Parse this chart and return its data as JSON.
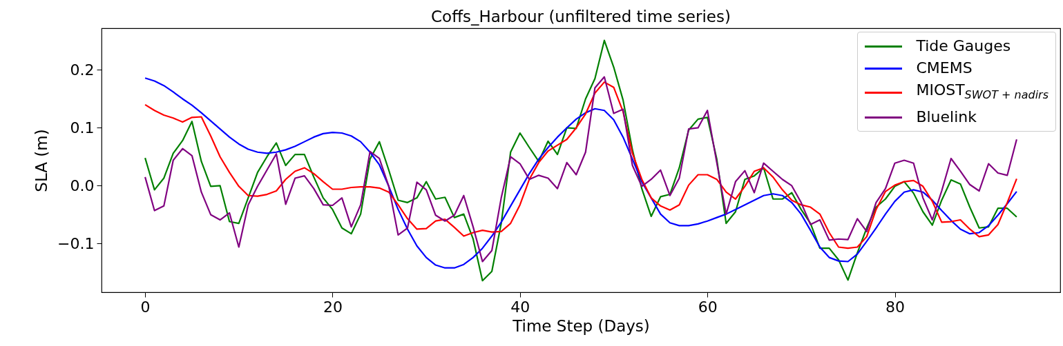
{
  "chart_data": {
    "type": "line",
    "title": "Coffs_Harbour (unfiltered time series)",
    "xlabel": "Time Step (Days)",
    "ylabel": "SLA (m)",
    "x": [
      0,
      1,
      2,
      3,
      4,
      5,
      6,
      7,
      8,
      9,
      10,
      11,
      12,
      13,
      14,
      15,
      16,
      17,
      18,
      19,
      20,
      21,
      22,
      23,
      24,
      25,
      26,
      27,
      28,
      29,
      30,
      31,
      32,
      33,
      34,
      35,
      36,
      37,
      38,
      39,
      40,
      41,
      42,
      43,
      44,
      45,
      46,
      47,
      48,
      49,
      50,
      51,
      52,
      53,
      54,
      55,
      56,
      57,
      58,
      59,
      60,
      61,
      62,
      63,
      64,
      65,
      66,
      67,
      68,
      69,
      70,
      71,
      72,
      73,
      74,
      75,
      76,
      77,
      78,
      79,
      80,
      81,
      82,
      83,
      84,
      85,
      86,
      87,
      88,
      89,
      90,
      91,
      92,
      93
    ],
    "series": [
      {
        "name": "Tide Gauges",
        "color": "#008000",
        "values": [
          0.048,
          -0.007,
          0.013,
          0.056,
          0.078,
          0.111,
          0.042,
          -0.001,
          0.0,
          -0.062,
          -0.065,
          -0.021,
          0.023,
          0.05,
          0.074,
          0.035,
          0.054,
          0.054,
          0.015,
          -0.021,
          -0.041,
          -0.073,
          -0.083,
          -0.049,
          0.046,
          0.076,
          0.027,
          -0.025,
          -0.029,
          -0.021,
          0.007,
          -0.023,
          -0.02,
          -0.055,
          -0.049,
          -0.092,
          -0.164,
          -0.148,
          -0.065,
          0.058,
          0.091,
          0.066,
          0.042,
          0.077,
          0.054,
          0.1,
          0.099,
          0.15,
          0.185,
          0.251,
          0.205,
          0.148,
          0.062,
          -0.005,
          -0.053,
          -0.019,
          -0.015,
          0.031,
          0.096,
          0.115,
          0.118,
          0.046,
          -0.065,
          -0.045,
          0.011,
          0.017,
          0.031,
          -0.023,
          -0.023,
          -0.012,
          -0.041,
          -0.065,
          -0.108,
          -0.108,
          -0.128,
          -0.163,
          -0.116,
          -0.073,
          -0.037,
          -0.023,
          -0.001,
          0.007,
          -0.013,
          -0.045,
          -0.068,
          -0.025,
          0.01,
          0.003,
          -0.037,
          -0.073,
          -0.071,
          -0.039,
          -0.039,
          -0.054
        ]
      },
      {
        "name": "CMEMS",
        "color": "#0000ff",
        "values": [
          0.186,
          0.181,
          0.173,
          0.162,
          0.15,
          0.139,
          0.126,
          0.112,
          0.098,
          0.084,
          0.072,
          0.063,
          0.058,
          0.056,
          0.058,
          0.062,
          0.068,
          0.076,
          0.084,
          0.09,
          0.092,
          0.091,
          0.086,
          0.076,
          0.058,
          0.036,
          -0.001,
          -0.041,
          -0.075,
          -0.104,
          -0.124,
          -0.137,
          -0.142,
          -0.142,
          -0.136,
          -0.124,
          -0.108,
          -0.087,
          -0.063,
          -0.035,
          -0.007,
          0.021,
          0.046,
          0.066,
          0.084,
          0.1,
          0.115,
          0.126,
          0.133,
          0.13,
          0.114,
          0.084,
          0.046,
          0.007,
          -0.021,
          -0.049,
          -0.064,
          -0.069,
          -0.069,
          -0.066,
          -0.061,
          -0.055,
          -0.049,
          -0.041,
          -0.033,
          -0.025,
          -0.017,
          -0.014,
          -0.017,
          -0.029,
          -0.049,
          -0.077,
          -0.106,
          -0.124,
          -0.13,
          -0.131,
          -0.118,
          -0.096,
          -0.073,
          -0.049,
          -0.027,
          -0.011,
          -0.007,
          -0.011,
          -0.025,
          -0.043,
          -0.06,
          -0.075,
          -0.083,
          -0.081,
          -0.069,
          -0.051,
          -0.031,
          -0.01
        ]
      },
      {
        "name": "MIOST$_{SWOT + nadirs}$",
        "color": "#ff0000",
        "values": [
          0.14,
          0.13,
          0.122,
          0.117,
          0.11,
          0.118,
          0.119,
          0.086,
          0.05,
          0.023,
          -0.001,
          -0.017,
          -0.018,
          -0.015,
          -0.009,
          0.011,
          0.025,
          0.031,
          0.021,
          0.007,
          -0.006,
          -0.006,
          -0.003,
          -0.002,
          -0.002,
          -0.004,
          -0.011,
          -0.033,
          -0.057,
          -0.075,
          -0.074,
          -0.061,
          -0.058,
          -0.072,
          -0.087,
          -0.081,
          -0.077,
          -0.08,
          -0.079,
          -0.065,
          -0.033,
          0.011,
          0.04,
          0.06,
          0.07,
          0.08,
          0.1,
          0.124,
          0.16,
          0.179,
          0.17,
          0.128,
          0.056,
          0.011,
          -0.021,
          -0.035,
          -0.042,
          -0.033,
          0.001,
          0.019,
          0.019,
          0.011,
          -0.011,
          -0.023,
          -0.001,
          0.025,
          0.031,
          0.015,
          -0.007,
          -0.025,
          -0.033,
          -0.037,
          -0.049,
          -0.081,
          -0.106,
          -0.108,
          -0.106,
          -0.088,
          -0.041,
          -0.01,
          0.001,
          0.007,
          0.009,
          -0.001,
          -0.027,
          -0.063,
          -0.062,
          -0.059,
          -0.075,
          -0.088,
          -0.085,
          -0.067,
          -0.029,
          0.012
        ]
      },
      {
        "name": "Bluelink",
        "color": "#800080",
        "values": [
          0.015,
          -0.043,
          -0.035,
          0.044,
          0.064,
          0.052,
          -0.011,
          -0.05,
          -0.059,
          -0.047,
          -0.106,
          -0.033,
          -0.001,
          0.027,
          0.055,
          -0.032,
          0.013,
          0.017,
          -0.005,
          -0.033,
          -0.034,
          -0.021,
          -0.071,
          -0.033,
          0.059,
          0.047,
          -0.001,
          -0.085,
          -0.073,
          0.006,
          -0.007,
          -0.051,
          -0.061,
          -0.051,
          -0.017,
          -0.071,
          -0.131,
          -0.112,
          -0.021,
          0.05,
          0.038,
          0.011,
          0.018,
          0.013,
          -0.005,
          0.04,
          0.019,
          0.058,
          0.169,
          0.188,
          0.125,
          0.132,
          0.035,
          -0.001,
          0.011,
          0.027,
          -0.017,
          0.013,
          0.098,
          0.1,
          0.13,
          0.04,
          -0.049,
          0.007,
          0.026,
          -0.012,
          0.039,
          0.025,
          0.011,
          0.0,
          -0.029,
          -0.067,
          -0.059,
          -0.094,
          -0.092,
          -0.093,
          -0.057,
          -0.079,
          -0.029,
          -0.005,
          0.039,
          0.044,
          0.039,
          -0.021,
          -0.059,
          -0.009,
          0.047,
          0.025,
          0.002,
          -0.009,
          0.038,
          0.022,
          0.018,
          0.08
        ]
      }
    ],
    "xlim": [
      -4.65,
      97.65
    ],
    "xticks": [
      0,
      20,
      40,
      60,
      80
    ],
    "ylim": [
      -0.184,
      0.272
    ],
    "yticks": [
      {
        "value": -0.1,
        "label": "−0.1"
      },
      {
        "value": 0,
        "label": "0.0"
      },
      {
        "value": 0.1,
        "label": "0.1"
      },
      {
        "value": 0.2,
        "label": "0.2"
      }
    ],
    "legend": "top right"
  }
}
